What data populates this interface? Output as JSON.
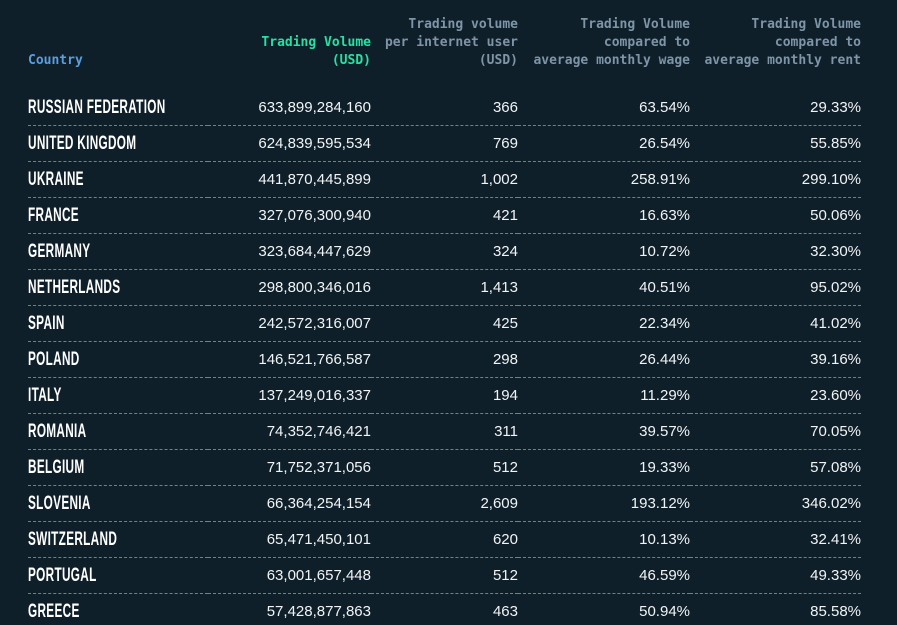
{
  "app": {
    "title": "Crypto trading volume by country table"
  },
  "colors": {
    "background": "#0f1f2a",
    "header_country": "#5b9ddd",
    "header_green": "#2ae0a0",
    "header_gray": "#7d95a6",
    "row_text": "#f1f4f5",
    "country_text": "#ffffff",
    "row_divider": "#c4cfd5"
  },
  "table": {
    "columns": [
      {
        "id": "country",
        "label": "Country",
        "color": "#5b9ddd",
        "align": "left"
      },
      {
        "id": "trading_volume_usd",
        "label": "Trading Volume\n(USD)",
        "color": "#2ae0a0",
        "align": "right"
      },
      {
        "id": "per_internet_user_usd",
        "label": "Trading volume\nper internet user\n(USD)",
        "color": "#7d95a6",
        "align": "right"
      },
      {
        "id": "vs_avg_monthly_wage",
        "label": "Trading Volume\ncompared to\naverage monthly wage",
        "color": "#7d95a6",
        "align": "right"
      },
      {
        "id": "vs_avg_monthly_rent",
        "label": "Trading Volume\ncompared to\naverage monthly rent",
        "color": "#7d95a6",
        "align": "right"
      }
    ],
    "rows": [
      {
        "country": "RUSSIAN FEDERATION",
        "trading_volume_usd": "633,899,284,160",
        "per_internet_user_usd": "366",
        "vs_avg_monthly_wage": "63.54%",
        "vs_avg_monthly_rent": "29.33%"
      },
      {
        "country": "UNITED KINGDOM",
        "trading_volume_usd": "624,839,595,534",
        "per_internet_user_usd": "769",
        "vs_avg_monthly_wage": "26.54%",
        "vs_avg_monthly_rent": "55.85%"
      },
      {
        "country": "UKRAINE",
        "trading_volume_usd": "441,870,445,899",
        "per_internet_user_usd": "1,002",
        "vs_avg_monthly_wage": "258.91%",
        "vs_avg_monthly_rent": "299.10%"
      },
      {
        "country": "FRANCE",
        "trading_volume_usd": "327,076,300,940",
        "per_internet_user_usd": "421",
        "vs_avg_monthly_wage": "16.63%",
        "vs_avg_monthly_rent": "50.06%"
      },
      {
        "country": "GERMANY",
        "trading_volume_usd": "323,684,447,629",
        "per_internet_user_usd": "324",
        "vs_avg_monthly_wage": "10.72%",
        "vs_avg_monthly_rent": "32.30%"
      },
      {
        "country": "NETHERLANDS",
        "trading_volume_usd": "298,800,346,016",
        "per_internet_user_usd": "1,413",
        "vs_avg_monthly_wage": "40.51%",
        "vs_avg_monthly_rent": "95.02%"
      },
      {
        "country": "SPAIN",
        "trading_volume_usd": "242,572,316,007",
        "per_internet_user_usd": "425",
        "vs_avg_monthly_wage": "22.34%",
        "vs_avg_monthly_rent": "41.02%"
      },
      {
        "country": "POLAND",
        "trading_volume_usd": "146,521,766,587",
        "per_internet_user_usd": "298",
        "vs_avg_monthly_wage": "26.44%",
        "vs_avg_monthly_rent": "39.16%"
      },
      {
        "country": "ITALY",
        "trading_volume_usd": "137,249,016,337",
        "per_internet_user_usd": "194",
        "vs_avg_monthly_wage": "11.29%",
        "vs_avg_monthly_rent": "23.60%"
      },
      {
        "country": "ROMANIA",
        "trading_volume_usd": "74,352,746,421",
        "per_internet_user_usd": "311",
        "vs_avg_monthly_wage": "39.57%",
        "vs_avg_monthly_rent": "70.05%"
      },
      {
        "country": "BELGIUM",
        "trading_volume_usd": "71,752,371,056",
        "per_internet_user_usd": "512",
        "vs_avg_monthly_wage": "19.33%",
        "vs_avg_monthly_rent": "57.08%"
      },
      {
        "country": "SLOVENIA",
        "trading_volume_usd": "66,364,254,154",
        "per_internet_user_usd": "2,609",
        "vs_avg_monthly_wage": "193.12%",
        "vs_avg_monthly_rent": "346.02%"
      },
      {
        "country": "SWITZERLAND",
        "trading_volume_usd": "65,471,450,101",
        "per_internet_user_usd": "620",
        "vs_avg_monthly_wage": "10.13%",
        "vs_avg_monthly_rent": "32.41%"
      },
      {
        "country": "PORTUGAL",
        "trading_volume_usd": "63,001,657,448",
        "per_internet_user_usd": "512",
        "vs_avg_monthly_wage": "46.59%",
        "vs_avg_monthly_rent": "49.33%"
      },
      {
        "country": "GREECE",
        "trading_volume_usd": "57,428,877,863",
        "per_internet_user_usd": "463",
        "vs_avg_monthly_wage": "50.94%",
        "vs_avg_monthly_rent": "85.58%"
      }
    ]
  }
}
